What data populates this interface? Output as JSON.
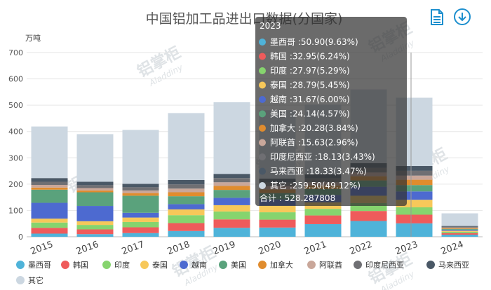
{
  "chart_data": {
    "type": "bar",
    "stacked": true,
    "title": "中国铝加工品进出口数据(分国家)",
    "y_unit": "万吨",
    "ylim": [
      0,
      700
    ],
    "yticks": [
      0,
      100,
      200,
      300,
      400,
      500,
      600,
      700
    ],
    "categories": [
      "2015",
      "2016",
      "2017",
      "2018",
      "2019",
      "2020",
      "2021",
      "2022",
      "2023",
      "2024"
    ],
    "series": [
      {
        "name": "墨西哥",
        "color": "#4fb3d9",
        "values": [
          12,
          10,
          14,
          22,
          34,
          35,
          48,
          60,
          50.9,
          8
        ]
      },
      {
        "name": "韩国",
        "color": "#ef5b5b",
        "values": [
          22,
          18,
          22,
          30,
          32,
          30,
          33,
          38,
          32.95,
          6
        ]
      },
      {
        "name": "印度",
        "color": "#86d46e",
        "values": [
          20,
          17,
          20,
          30,
          30,
          28,
          25,
          30,
          27.97,
          5
        ]
      },
      {
        "name": "泰国",
        "color": "#f7c85a",
        "values": [
          15,
          14,
          17,
          22,
          24,
          25,
          25,
          28,
          28.79,
          4
        ]
      },
      {
        "name": "越南",
        "color": "#4d6ad0",
        "values": [
          60,
          58,
          18,
          20,
          28,
          24,
          28,
          34,
          31.67,
          4
        ]
      },
      {
        "name": "美国",
        "color": "#5aa27c",
        "values": [
          50,
          52,
          65,
          30,
          30,
          24,
          22,
          24,
          24.14,
          3
        ]
      },
      {
        "name": "加拿大",
        "color": "#e08c2e",
        "values": [
          8,
          7,
          10,
          15,
          15,
          14,
          14,
          16,
          20.28,
          3
        ]
      },
      {
        "name": "阿联酋",
        "color": "#c9a79a",
        "values": [
          10,
          9,
          10,
          14,
          14,
          12,
          12,
          14,
          15.63,
          2
        ]
      },
      {
        "name": "印度尼西亚",
        "color": "#6f6f73",
        "values": [
          12,
          11,
          12,
          16,
          16,
          14,
          15,
          18,
          18.13,
          3
        ]
      },
      {
        "name": "马来西亚",
        "color": "#4a5866",
        "values": [
          14,
          13,
          13,
          17,
          16,
          15,
          15,
          18,
          18.33,
          3
        ]
      },
      {
        "name": "其它",
        "color": "#ccd7e1",
        "values": [
          196,
          181,
          205,
          254,
          272,
          260,
          265,
          280,
          259.5,
          48
        ]
      }
    ],
    "grid": true,
    "legend_position": "bottom",
    "tooltip": {
      "category": "2023",
      "rows": [
        {
          "name": "墨西哥",
          "text": "墨西哥 :50.90(9.63%)"
        },
        {
          "name": "韩国",
          "text": "韩国 :32.95(6.24%)"
        },
        {
          "name": "印度",
          "text": "印度 :27.97(5.29%)"
        },
        {
          "name": "泰国",
          "text": "泰国 :28.79(5.45%)"
        },
        {
          "name": "越南",
          "text": "越南 :31.67(6.00%)"
        },
        {
          "name": "美国",
          "text": "美国 :24.14(4.57%)"
        },
        {
          "name": "加拿大",
          "text": "加拿大 :20.28(3.84%)"
        },
        {
          "name": "阿联酋",
          "text": "阿联酋 :15.63(2.96%)"
        },
        {
          "name": "印度尼西亚",
          "text": "印度尼西亚 :18.13(3.43%)"
        },
        {
          "name": "马来西亚",
          "text": "马来西亚 :18.33(3.47%)"
        },
        {
          "name": "其它",
          "text": "其它 :259.50(49.12%)"
        }
      ],
      "total": "合计 : 528.287808"
    }
  },
  "toolbar": {
    "icons": [
      "document-icon",
      "download-icon"
    ]
  },
  "watermark": {
    "text": "铝掌柜",
    "sub": "Aladdiny",
    "color": "#dfe3e6"
  }
}
